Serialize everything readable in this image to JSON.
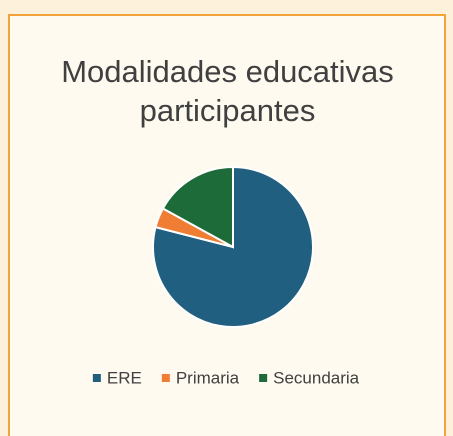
{
  "chart_data": {
    "type": "pie",
    "title": "Modalidades educativas participantes",
    "categories": [
      "ERE",
      "Primaria",
      "Secundaria"
    ],
    "values": [
      79,
      4,
      17
    ],
    "colors": [
      "#215f80",
      "#f07d34",
      "#1e6b3a"
    ],
    "legend": "bottom"
  }
}
